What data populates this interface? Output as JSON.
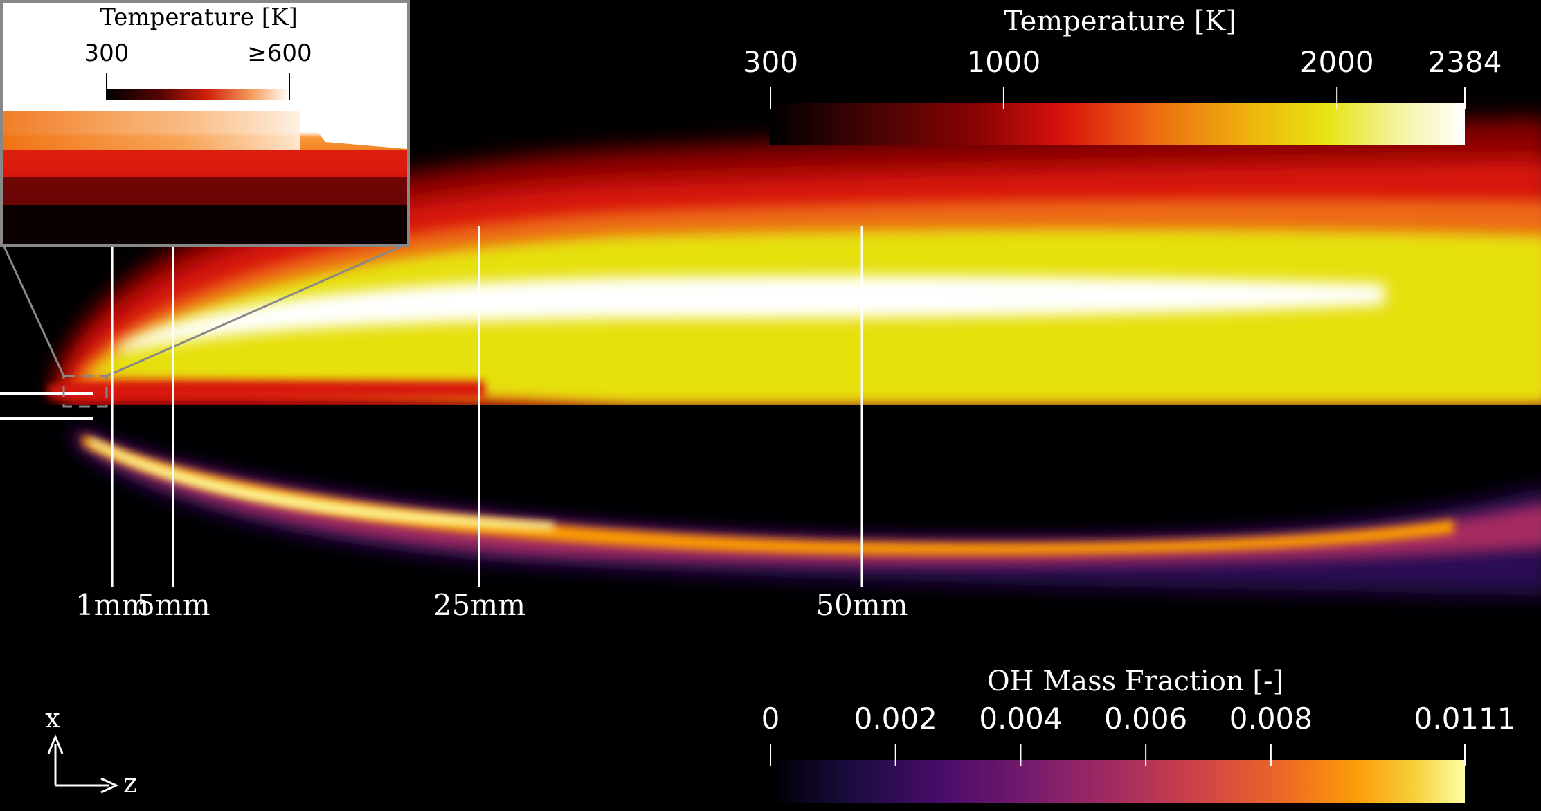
{
  "temperature_legend": {
    "title": "Temperature [K]",
    "ticks": [
      "300",
      "1000",
      "2000",
      "2384"
    ],
    "tick_values": [
      300,
      1000,
      2000,
      2384
    ],
    "range": [
      300,
      2384
    ],
    "colormap": [
      "#000000",
      "#3a0303",
      "#8a0303",
      "#c80a05",
      "#e8281a",
      "#f0720f",
      "#f2a80c",
      "#e8dc10",
      "#f4ef8a",
      "#ffffff"
    ]
  },
  "oh_legend": {
    "title": "OH Mass Fraction [-]",
    "ticks": [
      "0",
      "0.002",
      "0.004",
      "0.006",
      "0.008",
      "0.0111"
    ],
    "tick_values": [
      0,
      0.002,
      0.004,
      0.006,
      0.008,
      0.0111
    ],
    "range": [
      0,
      0.0111
    ],
    "colormap": [
      "#000004",
      "#1b0c41",
      "#4a0c6b",
      "#781c6d",
      "#a52c60",
      "#cf4446",
      "#ed6925",
      "#fb9b06",
      "#f7d13d",
      "#fcffa4"
    ]
  },
  "inset": {
    "title": "Temperature [K]",
    "ticks": [
      "300",
      "≥600"
    ],
    "tick_values": [
      300,
      600
    ]
  },
  "stations": [
    {
      "label": "1mm",
      "z_mm": 1
    },
    {
      "label": "5mm",
      "z_mm": 5
    },
    {
      "label": "25mm",
      "z_mm": 25
    },
    {
      "label": "50mm",
      "z_mm": 50
    }
  ],
  "axes": {
    "x_label": "x",
    "z_label": "z"
  }
}
